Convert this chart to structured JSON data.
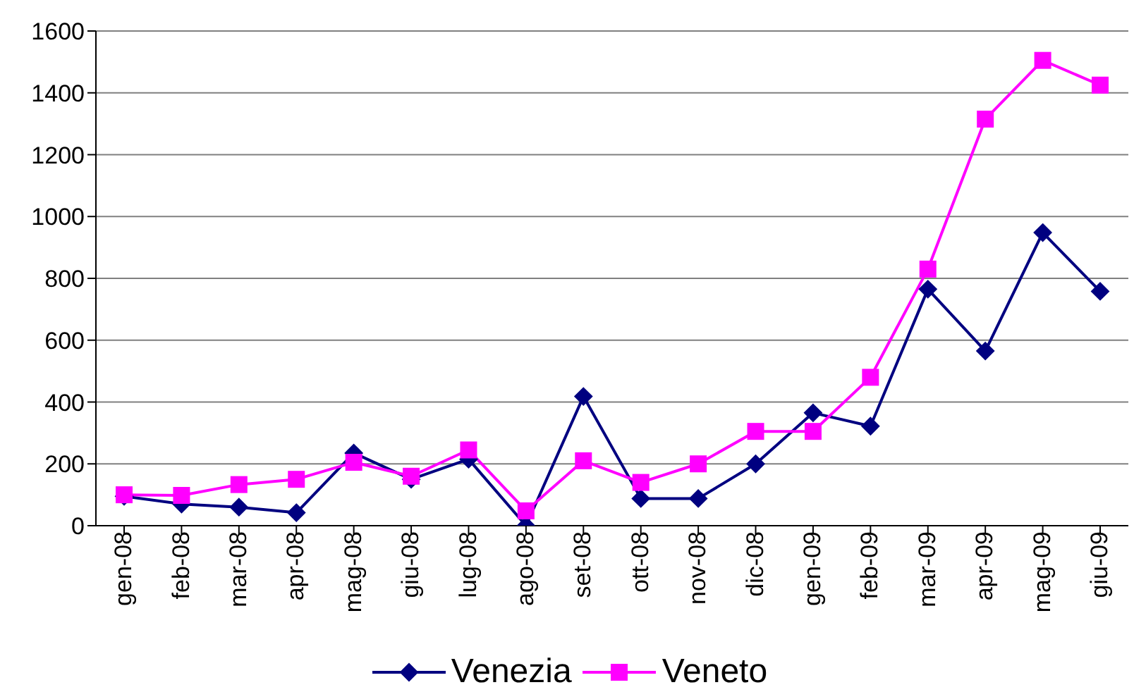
{
  "chart_data": {
    "type": "line",
    "categories": [
      "gen-08",
      "feb-08",
      "mar-08",
      "apr-08",
      "mag-08",
      "giu-08",
      "lug-08",
      "ago-08",
      "set-08",
      "ott-08",
      "nov-08",
      "dic-08",
      "gen-09",
      "feb-09",
      "mar-09",
      "apr-09",
      "mag-09",
      "giu-09"
    ],
    "series": [
      {
        "name": "Venezia",
        "color": "#000080",
        "marker": "diamond",
        "values": [
          95,
          70,
          60,
          42,
          235,
          150,
          215,
          0,
          418,
          88,
          88,
          200,
          365,
          322,
          765,
          565,
          948,
          758
        ]
      },
      {
        "name": "Veneto",
        "color": "#ff00ff",
        "marker": "square",
        "values": [
          100,
          98,
          133,
          150,
          205,
          160,
          245,
          48,
          210,
          140,
          200,
          305,
          305,
          480,
          830,
          1315,
          1505,
          1425
        ]
      }
    ],
    "ylim": [
      0,
      1600
    ],
    "yticks": [
      0,
      200,
      400,
      600,
      800,
      1000,
      1200,
      1400,
      1600
    ],
    "grid": "y",
    "legend": "bottom",
    "line_style": "solid"
  }
}
